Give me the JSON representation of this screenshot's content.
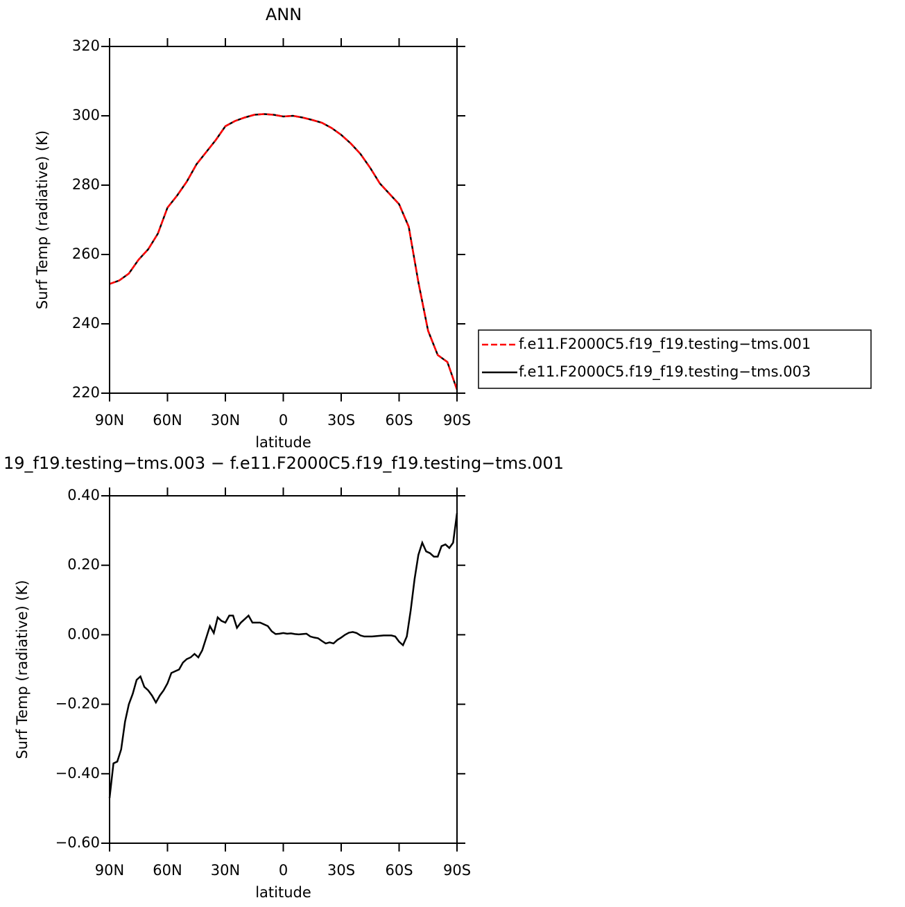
{
  "chart_data": [
    {
      "type": "line",
      "title": "ANN",
      "y_label": "Surf Temp (radiative) (K)",
      "x_label": "latitude",
      "x": [
        90,
        85,
        80,
        75,
        70,
        65,
        60,
        55,
        50,
        45,
        40,
        35,
        30,
        25,
        20,
        15,
        10,
        5,
        0,
        -5,
        -10,
        -15,
        -20,
        -25,
        -30,
        -35,
        -40,
        -45,
        -50,
        -55,
        -60,
        -65,
        -70,
        -75,
        -80,
        -85,
        -90
      ],
      "series": [
        {
          "name": "f.e11.F2000C5.f19_f19.testing−tms.001",
          "color": "#ff0000",
          "line_style": "dashed",
          "values": [
            251.5,
            252.5,
            254.5,
            258.5,
            261.5,
            266,
            273.5,
            277,
            281,
            286,
            289.5,
            293,
            297,
            298.5,
            299.5,
            300.3,
            300.5,
            300.3,
            299.8,
            300,
            299.5,
            298.8,
            298,
            296.5,
            294.5,
            292,
            289,
            285,
            280.5,
            277.5,
            274.5,
            268,
            252,
            238,
            231,
            229,
            221
          ]
        },
        {
          "name": "f.e11.F2000C5.f19_f19.testing−tms.003",
          "color": "#000000",
          "line_style": "solid",
          "values": [
            251.5,
            252.5,
            254.5,
            258.5,
            261.5,
            266,
            273.5,
            277,
            281,
            286,
            289.5,
            293,
            297,
            298.5,
            299.5,
            300.3,
            300.5,
            300.3,
            299.8,
            300,
            299.5,
            298.8,
            298,
            296.5,
            294.5,
            292,
            289,
            285,
            280.5,
            277.5,
            274.5,
            268,
            252,
            238,
            231,
            229,
            221
          ]
        }
      ],
      "xlim": [
        90,
        -90
      ],
      "xticks": [
        {
          "value": 90,
          "label": "90N"
        },
        {
          "value": 60,
          "label": "60N"
        },
        {
          "value": 30,
          "label": "30N"
        },
        0,
        {
          "value": -30,
          "label": "30S"
        },
        {
          "value": -60,
          "label": "60S"
        },
        {
          "value": -90,
          "label": "90S"
        }
      ],
      "ylim": [
        220,
        320
      ],
      "yticks": [
        220,
        240,
        260,
        280,
        300,
        320
      ],
      "legend": "outside right"
    },
    {
      "type": "line",
      "title": "19_f19.testing−tms.003 − f.e11.F2000C5.f19_f19.testing−tms.001",
      "y_label": "Surf Temp (radiative) (K)",
      "x_label": "latitude",
      "x": [
        90,
        88,
        86,
        84,
        82,
        80,
        78,
        76,
        74,
        72,
        70,
        68,
        66,
        64,
        62,
        60,
        58,
        56,
        54,
        52,
        50,
        48,
        46,
        44,
        42,
        40,
        38,
        36,
        34,
        32,
        30,
        28,
        26,
        24,
        22,
        20,
        18,
        16,
        14,
        12,
        10,
        8,
        6,
        4,
        2,
        0,
        -2,
        -4,
        -6,
        -8,
        -10,
        -12,
        -14,
        -16,
        -18,
        -20,
        -22,
        -24,
        -26,
        -28,
        -30,
        -32,
        -34,
        -36,
        -38,
        -40,
        -42,
        -44,
        -46,
        -48,
        -50,
        -52,
        -54,
        -56,
        -58,
        -60,
        -62,
        -64,
        -66,
        -68,
        -70,
        -72,
        -74,
        -76,
        -78,
        -80,
        -82,
        -84,
        -86,
        -88,
        -90
      ],
      "values": [
        -0.47,
        -0.37,
        -0.365,
        -0.33,
        -0.25,
        -0.2,
        -0.17,
        -0.13,
        -0.12,
        -0.15,
        -0.16,
        -0.175,
        -0.195,
        -0.175,
        -0.16,
        -0.14,
        -0.11,
        -0.105,
        -0.1,
        -0.08,
        -0.07,
        -0.065,
        -0.055,
        -0.065,
        -0.045,
        -0.01,
        0.025,
        0.005,
        0.05,
        0.04,
        0.035,
        0.055,
        0.055,
        0.02,
        0.035,
        0.045,
        0.055,
        0.035,
        0.035,
        0.035,
        0.03,
        0.025,
        0.01,
        0.002,
        0.003,
        0.005,
        0.003,
        0.004,
        0.002,
        0.001,
        0.002,
        0.003,
        -0.005,
        -0.008,
        -0.01,
        -0.018,
        -0.025,
        -0.022,
        -0.025,
        -0.015,
        -0.008,
        0.0,
        0.006,
        0.008,
        0.005,
        -0.002,
        -0.005,
        -0.005,
        -0.005,
        -0.004,
        -0.003,
        -0.002,
        -0.002,
        -0.002,
        -0.005,
        -0.02,
        -0.03,
        -0.005,
        0.07,
        0.16,
        0.23,
        0.265,
        0.24,
        0.235,
        0.225,
        0.225,
        0.255,
        0.26,
        0.25,
        0.265,
        0.35
      ],
      "color": "#000000",
      "xlim": [
        90,
        -90
      ],
      "xticks": [
        {
          "value": 90,
          "label": "90N"
        },
        {
          "value": 60,
          "label": "60N"
        },
        {
          "value": 30,
          "label": "30N"
        },
        0,
        {
          "value": -30,
          "label": "30S"
        },
        {
          "value": -60,
          "label": "60S"
        },
        {
          "value": -90,
          "label": "90S"
        }
      ],
      "ylim": [
        -0.6,
        0.4
      ],
      "yticks": [
        {
          "value": -0.6,
          "label": "−0.60"
        },
        {
          "value": -0.4,
          "label": "−0.40"
        },
        {
          "value": -0.2,
          "label": "−0.20"
        },
        {
          "value": 0,
          "label": "0.00"
        },
        {
          "value": 0.2,
          "label": "0.20"
        },
        {
          "value": 0.4,
          "label": "0.40"
        }
      ]
    }
  ]
}
